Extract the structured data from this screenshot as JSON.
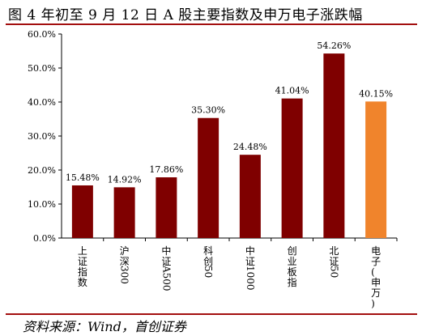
{
  "title": "图 4 年初至 9 月 12 日 A 股主要指数及申万电子涨跌幅",
  "source": "资料来源：Wind，首创证券",
  "colors": {
    "bar": "#7f0000",
    "highlight": "#f0842c",
    "rule": "#a30f0f"
  },
  "chart_data": {
    "type": "bar",
    "categories": [
      "上证指数",
      "沪深300",
      "中证A500",
      "科创50",
      "中证1000",
      "创业板指",
      "北证50",
      "电子(申万)"
    ],
    "values": [
      15.48,
      14.92,
      17.86,
      35.3,
      24.48,
      41.04,
      54.26,
      40.15
    ],
    "data_labels": [
      "15.48%",
      "14.92%",
      "17.86%",
      "35.30%",
      "24.48%",
      "41.04%",
      "54.26%",
      "40.15%"
    ],
    "highlight_index": 7,
    "ylim": [
      0,
      60
    ],
    "yticks": [
      0,
      10,
      20,
      30,
      40,
      50,
      60
    ],
    "ytick_labels": [
      "0.0%",
      "10.0%",
      "20.0%",
      "30.0%",
      "40.0%",
      "50.0%",
      "60.0%"
    ],
    "xlabel": "",
    "ylabel": "",
    "grid": false,
    "legend": "none"
  }
}
